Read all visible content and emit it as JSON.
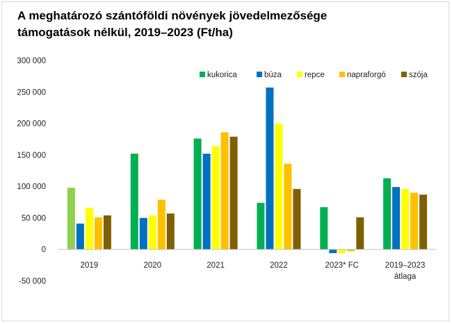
{
  "chart_data": {
    "type": "bar",
    "title_lines": [
      "A meghatározó szántóföldi növények jövedelmezősége",
      "támogatások nélkül, 2019–2023 (Ft/ha)"
    ],
    "categories": [
      [
        "2019"
      ],
      [
        "2020"
      ],
      [
        "2021"
      ],
      [
        "2022"
      ],
      [
        "2023* FC"
      ],
      [
        "2019–2023",
        "átlaga"
      ]
    ],
    "series": [
      {
        "name": "kukorica",
        "color": "#00b050",
        "values": [
          98000,
          152000,
          176000,
          74000,
          67000,
          113000
        ]
      },
      {
        "name": "búza",
        "color": "#0070c0",
        "values": [
          41000,
          50000,
          152000,
          257000,
          -6000,
          99000
        ]
      },
      {
        "name": "repce",
        "color": "#ffff00",
        "values": [
          66000,
          54000,
          164000,
          200000,
          -6000,
          96000
        ]
      },
      {
        "name": "napraforgó",
        "color": "#ffc000",
        "values": [
          51000,
          79000,
          186000,
          136000,
          -3000,
          90000
        ]
      },
      {
        "name": "szója",
        "color": "#7f6000",
        "values": [
          54000,
          57000,
          179000,
          96000,
          51000,
          87000
        ]
      }
    ],
    "highlight": {
      "series": 0,
      "category": 0,
      "color": "#92d050"
    },
    "ylim": [
      -50000,
      300000
    ],
    "ytick_step": 50000,
    "ytick_labels": [
      "-50 000",
      "0",
      "50 000",
      "100 000",
      "150 000",
      "200 000",
      "250 000",
      "300 000"
    ],
    "grid": false,
    "legend_position": "top-right",
    "xlabel": "",
    "ylabel": ""
  }
}
